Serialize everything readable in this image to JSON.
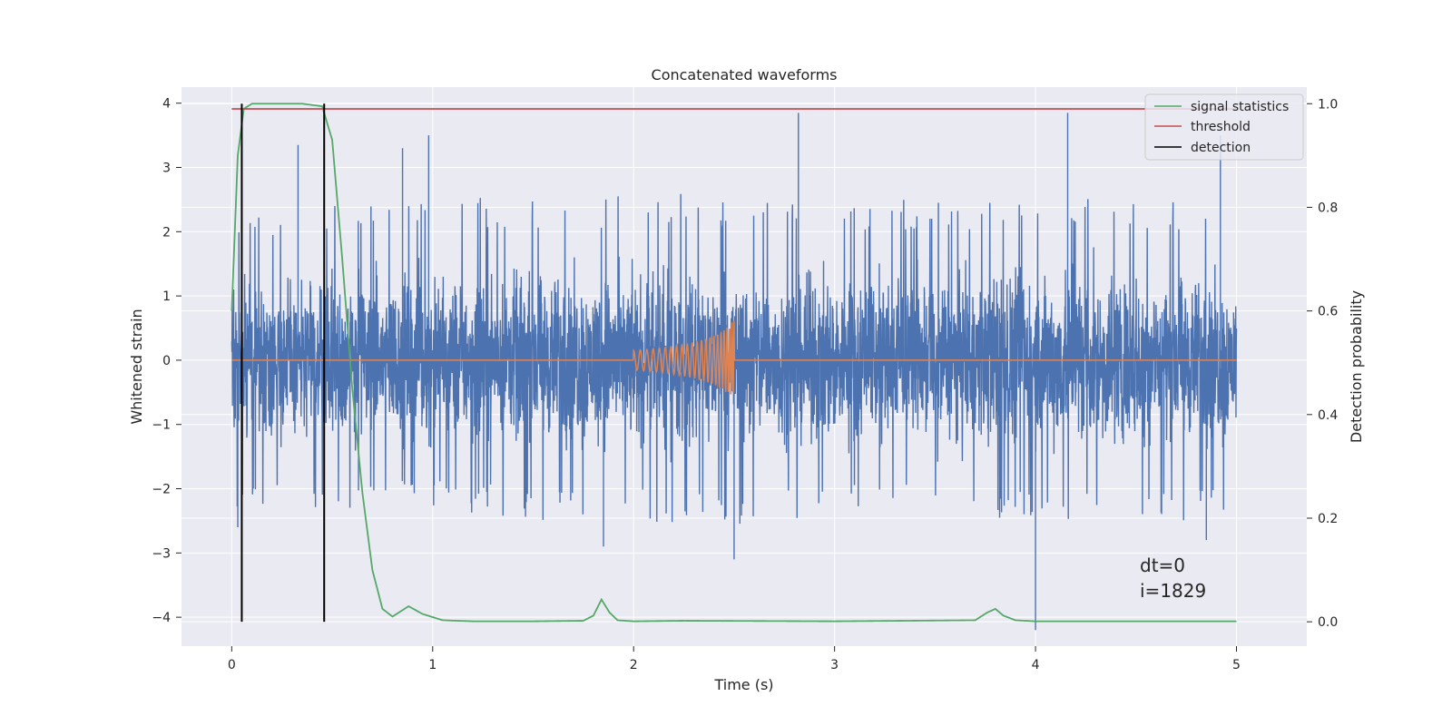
{
  "chart_data": {
    "type": "line",
    "title": "Concatenated waveforms",
    "xlabel": "Time (s)",
    "ylabel": "Whitened strain",
    "y2label": "Detection probability",
    "xlim": [
      -0.25,
      5.35
    ],
    "ylim": [
      -4.45,
      4.25
    ],
    "y2lim": [
      -0.047,
      1.032
    ],
    "xticks": [
      0,
      1,
      2,
      3,
      4,
      5
    ],
    "yticks": [
      -4,
      -3,
      -2,
      -1,
      0,
      1,
      2,
      3,
      4
    ],
    "y2ticks": [
      0.0,
      0.2,
      0.4,
      0.6,
      0.8,
      1.0
    ],
    "grid": true,
    "legend_position": "top-right",
    "legend": [
      "signal statistics",
      "threshold",
      "detection"
    ],
    "colors": {
      "strain": "#4c72b0",
      "template": "#dd8452",
      "signal_statistics": "#55a868",
      "threshold": "#c44e52",
      "detection": "#000000",
      "axes_bg": "#eaeaf2",
      "grid": "#ffffff"
    },
    "series": [
      {
        "role": "whitened-strain",
        "axis": "left",
        "x_range": [
          0,
          5
        ],
        "envelope": {
          "x": [
            0,
            0.5,
            1,
            1.5,
            2,
            2.5,
            3,
            3.5,
            4,
            4.5,
            5
          ],
          "upper": [
            2.2,
            2.5,
            2.6,
            2.5,
            2.6,
            2.6,
            2.5,
            2.5,
            2.6,
            2.6,
            2.3
          ],
          "lower": [
            -2.3,
            -2.4,
            -2.3,
            -2.5,
            -2.5,
            -2.6,
            -2.4,
            -2.4,
            -2.5,
            -2.6,
            -2.4
          ]
        },
        "peaks": [
          {
            "x": 0.33,
            "y": 3.35
          },
          {
            "x": 0.46,
            "y": 3.2
          },
          {
            "x": 0.85,
            "y": 3.3
          },
          {
            "x": 0.98,
            "y": 3.5
          },
          {
            "x": 2.82,
            "y": 3.85
          },
          {
            "x": 4.16,
            "y": 3.85
          },
          {
            "x": 4.92,
            "y": 3.5
          },
          {
            "x": 4.0,
            "y": -4.2
          },
          {
            "x": 1.85,
            "y": -2.9
          },
          {
            "x": 2.5,
            "y": -3.1
          },
          {
            "x": 0.03,
            "y": -2.6
          },
          {
            "x": 4.85,
            "y": -2.8
          }
        ]
      },
      {
        "role": "injected-waveform",
        "axis": "left",
        "x": [
          0,
          2.0,
          2.1,
          2.2,
          2.3,
          2.4,
          2.45,
          2.5,
          2.51,
          5
        ],
        "amplitude": [
          0,
          0.15,
          0.18,
          0.22,
          0.28,
          0.38,
          0.48,
          0.62,
          0,
          0
        ]
      },
      {
        "name": "signal statistics",
        "axis": "right",
        "x": [
          0.0,
          0.03,
          0.06,
          0.1,
          0.2,
          0.35,
          0.45,
          0.5,
          0.55,
          0.6,
          0.65,
          0.7,
          0.75,
          0.8,
          0.88,
          0.95,
          1.05,
          1.2,
          1.5,
          1.75,
          1.8,
          1.84,
          1.88,
          1.92,
          2.0,
          2.25,
          3.0,
          3.7,
          3.76,
          3.8,
          3.84,
          3.9,
          4.0,
          5.0
        ],
        "y": [
          0.6,
          0.9,
          0.99,
          1.0,
          1.0,
          1.0,
          0.995,
          0.93,
          0.7,
          0.45,
          0.25,
          0.1,
          0.025,
          0.01,
          0.03,
          0.015,
          0.003,
          0.001,
          0.001,
          0.002,
          0.012,
          0.043,
          0.018,
          0.003,
          0.001,
          0.002,
          0.001,
          0.003,
          0.018,
          0.025,
          0.012,
          0.003,
          0.001,
          0.001
        ]
      },
      {
        "name": "threshold",
        "axis": "right",
        "x": [
          0,
          5
        ],
        "y": [
          0.99,
          0.99
        ]
      },
      {
        "name": "detection",
        "axis": "right",
        "type": "vlines",
        "x": [
          0.05,
          0.46
        ],
        "ymin": 0.0,
        "ymax": 1.0
      }
    ],
    "annotations": [
      "dt=0",
      "i=1829"
    ]
  }
}
